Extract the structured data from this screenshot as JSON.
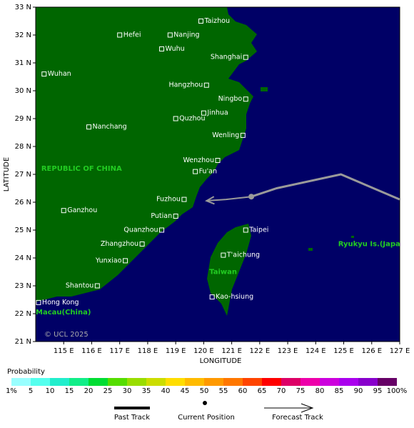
{
  "map": {
    "ocean_color": "#000066",
    "land_color": "#006600",
    "xlim": [
      114,
      127
    ],
    "ylim": [
      21,
      33
    ],
    "xticks": [
      {
        "value": 115,
        "label": "115 E"
      },
      {
        "value": 116,
        "label": "116 E"
      },
      {
        "value": 117,
        "label": "117 E"
      },
      {
        "value": 118,
        "label": "118 E"
      },
      {
        "value": 119,
        "label": "119 E"
      },
      {
        "value": 120,
        "label": "120 E"
      },
      {
        "value": 121,
        "label": "121 E"
      },
      {
        "value": 122,
        "label": "122 E"
      },
      {
        "value": 123,
        "label": "123 E"
      },
      {
        "value": 124,
        "label": "124 E"
      },
      {
        "value": 125,
        "label": "125 E"
      },
      {
        "value": 126,
        "label": "126 E"
      },
      {
        "value": 127,
        "label": "127 E"
      }
    ],
    "yticks": [
      {
        "value": 21,
        "label": "21 N"
      },
      {
        "value": 22,
        "label": "22 N"
      },
      {
        "value": 23,
        "label": "23 N"
      },
      {
        "value": 24,
        "label": "24 N"
      },
      {
        "value": 25,
        "label": "25 N"
      },
      {
        "value": 26,
        "label": "26 N"
      },
      {
        "value": 27,
        "label": "27 N"
      },
      {
        "value": 28,
        "label": "28 N"
      },
      {
        "value": 29,
        "label": "29 N"
      },
      {
        "value": 30,
        "label": "30 N"
      },
      {
        "value": 31,
        "label": "31 N"
      },
      {
        "value": 32,
        "label": "32 N"
      },
      {
        "value": 33,
        "label": "33 N"
      }
    ],
    "xlabel": "LONGITUDE",
    "ylabel": "LATITUDE",
    "copyright": "© UCL 2025",
    "region_labels": [
      {
        "text": "REPUBLIC OF CHINA",
        "lon": 114.2,
        "lat": 27.2,
        "size": "large"
      },
      {
        "text": "Taiwan",
        "lon": 120.2,
        "lat": 23.5,
        "size": "large"
      },
      {
        "text": "Ryukyu Is.(Japan)",
        "lon": 124.8,
        "lat": 24.5,
        "size": "small"
      },
      {
        "text": "Macau(China)",
        "lon": 114.0,
        "lat": 22.05,
        "size": "small"
      }
    ],
    "cities": [
      {
        "name": "Taizhou",
        "lon": 119.9,
        "lat": 32.5,
        "side": "right"
      },
      {
        "name": "Hefei",
        "lon": 117.0,
        "lat": 32.0,
        "side": "right"
      },
      {
        "name": "Nanjing",
        "lon": 118.8,
        "lat": 32.0,
        "side": "right"
      },
      {
        "name": "Wuhu",
        "lon": 118.5,
        "lat": 31.5,
        "side": "right"
      },
      {
        "name": "Shanghai",
        "lon": 121.5,
        "lat": 31.2,
        "side": "left"
      },
      {
        "name": "Wuhan",
        "lon": 114.3,
        "lat": 30.6,
        "side": "right"
      },
      {
        "name": "Hangzhou",
        "lon": 120.1,
        "lat": 30.2,
        "side": "left"
      },
      {
        "name": "Ningbo",
        "lon": 121.5,
        "lat": 29.7,
        "side": "left"
      },
      {
        "name": "Jinhua",
        "lon": 120.0,
        "lat": 29.2,
        "side": "right"
      },
      {
        "name": "Quzhou",
        "lon": 119.0,
        "lat": 29.0,
        "side": "right"
      },
      {
        "name": "Nanchang",
        "lon": 115.9,
        "lat": 28.7,
        "side": "right"
      },
      {
        "name": "Wenling",
        "lon": 121.4,
        "lat": 28.4,
        "side": "left"
      },
      {
        "name": "Wenzhou",
        "lon": 120.5,
        "lat": 27.5,
        "side": "left"
      },
      {
        "name": "Fu'an",
        "lon": 119.7,
        "lat": 27.1,
        "side": "right"
      },
      {
        "name": "Fuzhou",
        "lon": 119.3,
        "lat": 26.1,
        "side": "left"
      },
      {
        "name": "Ganzhou",
        "lon": 115.0,
        "lat": 25.7,
        "side": "right"
      },
      {
        "name": "Putian",
        "lon": 119.0,
        "lat": 25.5,
        "side": "left"
      },
      {
        "name": "Taipei",
        "lon": 121.5,
        "lat": 25.0,
        "side": "right"
      },
      {
        "name": "Quanzhou",
        "lon": 118.5,
        "lat": 25.0,
        "side": "left"
      },
      {
        "name": "Zhangzhou",
        "lon": 117.8,
        "lat": 24.5,
        "side": "left"
      },
      {
        "name": "T'aichung",
        "lon": 120.7,
        "lat": 24.1,
        "side": "right"
      },
      {
        "name": "Yunxiao",
        "lon": 117.2,
        "lat": 23.9,
        "side": "left"
      },
      {
        "name": "Shantou",
        "lon": 116.2,
        "lat": 23.0,
        "side": "left"
      },
      {
        "name": "Kao-hsiung",
        "lon": 120.3,
        "lat": 22.6,
        "side": "right"
      },
      {
        "name": "Hong Kong",
        "lon": 114.1,
        "lat": 22.4,
        "side": "right"
      }
    ],
    "track_color": "#9a9a9a",
    "past_track": {
      "lon": [
        127.0,
        124.9,
        122.6,
        121.7
      ],
      "lat": [
        26.1,
        27.0,
        26.5,
        26.2
      ]
    },
    "current_position": {
      "lon": 121.7,
      "lat": 26.2
    },
    "forecast_track": {
      "lon": [
        121.7,
        120.8,
        120.1
      ],
      "lat": [
        26.2,
        26.1,
        26.05
      ]
    }
  },
  "legend": {
    "title": "Probability",
    "colors": [
      "#99ffff",
      "#55ffee",
      "#22eecc",
      "#11ee88",
      "#00dd33",
      "#55dd00",
      "#99dd00",
      "#ccdd00",
      "#ffdd00",
      "#ffbb00",
      "#ff9900",
      "#ff7700",
      "#ff4400",
      "#ff0000",
      "#dd0066",
      "#ee00aa",
      "#cc00dd",
      "#aa00ee",
      "#8800cc",
      "#660066"
    ],
    "labels": [
      "1%",
      "5",
      "10",
      "15",
      "20",
      "25",
      "30",
      "35",
      "40",
      "45",
      "50",
      "55",
      "60",
      "65",
      "70",
      "75",
      "80",
      "85",
      "90",
      "95",
      "100%"
    ],
    "past_track": "Past Track",
    "current_position": "Current Position",
    "forecast_track": "Forecast Track"
  }
}
